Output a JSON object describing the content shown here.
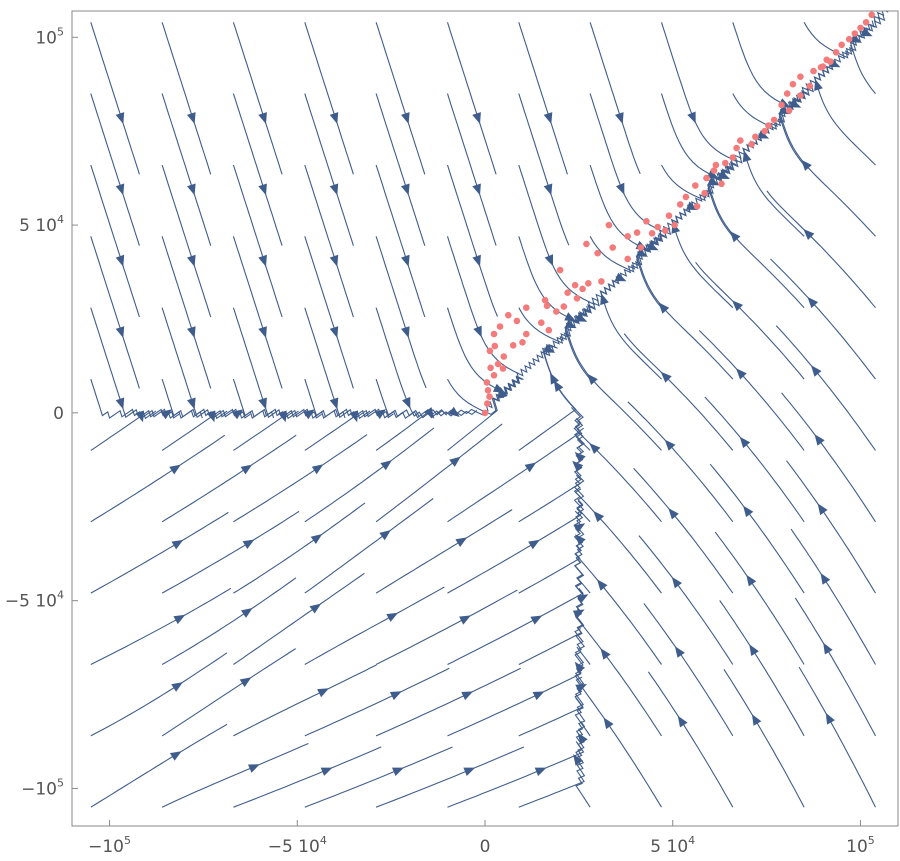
{
  "chart_data": {
    "type": "scatter",
    "subtype": "stream_plot_with_points",
    "title": "",
    "xlabel": "",
    "ylabel": "",
    "xlim": [
      -110000,
      110000
    ],
    "ylim": [
      -110000,
      107000
    ],
    "grid": false,
    "frame": true,
    "colors": {
      "stream": "#3f5d8c",
      "points": "#f47b7b",
      "frame": "#8a8a8a",
      "tick_text": "#555555"
    },
    "x_ticks": [
      {
        "value": -100000,
        "label": "−10",
        "exp": "5"
      },
      {
        "value": -50000,
        "label": "−5 10",
        "exp": "4"
      },
      {
        "value": 0,
        "label": "0",
        "exp": ""
      },
      {
        "value": 50000,
        "label": "5 10",
        "exp": "4"
      },
      {
        "value": 100000,
        "label": "10",
        "exp": "5"
      }
    ],
    "y_ticks": [
      {
        "value": 100000,
        "label": "10",
        "exp": "5"
      },
      {
        "value": 50000,
        "label": "5 10",
        "exp": "4"
      },
      {
        "value": 0,
        "label": "0",
        "exp": ""
      },
      {
        "value": -50000,
        "label": "−5 10",
        "exp": "4"
      },
      {
        "value": -100000,
        "label": "−10",
        "exp": "5"
      }
    ],
    "points": [
      [
        0,
        0
      ],
      [
        600,
        2500
      ],
      [
        1200,
        4300
      ],
      [
        800,
        6000
      ],
      [
        500,
        8100
      ],
      [
        2400,
        10000
      ],
      [
        1500,
        12000
      ],
      [
        4800,
        11800
      ],
      [
        3500,
        13000
      ],
      [
        5000,
        15000
      ],
      [
        1300,
        16500
      ],
      [
        2600,
        17800
      ],
      [
        7500,
        18000
      ],
      [
        10000,
        18800
      ],
      [
        2400,
        21000
      ],
      [
        11000,
        21000
      ],
      [
        17000,
        22000
      ],
      [
        4000,
        23000
      ],
      [
        8500,
        24500
      ],
      [
        15000,
        24000
      ],
      [
        6200,
        26000
      ],
      [
        19000,
        27000
      ],
      [
        11000,
        28000
      ],
      [
        16500,
        28500
      ],
      [
        21000,
        28300
      ],
      [
        16000,
        30000
      ],
      [
        24500,
        30500
      ],
      [
        22000,
        32000
      ],
      [
        26000,
        33000
      ],
      [
        24000,
        34000
      ],
      [
        27500,
        34500
      ],
      [
        31000,
        35000
      ],
      [
        20000,
        38000
      ],
      [
        38000,
        41000
      ],
      [
        30000,
        42500
      ],
      [
        34000,
        44000
      ],
      [
        41500,
        44000
      ],
      [
        27000,
        45000
      ],
      [
        38000,
        47000
      ],
      [
        40500,
        48000
      ],
      [
        44500,
        47800
      ],
      [
        46000,
        49500
      ],
      [
        48000,
        48500
      ],
      [
        50500,
        50000
      ],
      [
        43000,
        51000
      ],
      [
        33000,
        50000
      ],
      [
        49000,
        52500
      ],
      [
        52000,
        55500
      ],
      [
        56500,
        55000
      ],
      [
        53500,
        57500
      ],
      [
        58500,
        58500
      ],
      [
        56000,
        60500
      ],
      [
        63000,
        61000
      ],
      [
        59000,
        62500
      ],
      [
        61000,
        64500
      ],
      [
        64000,
        66500
      ],
      [
        66000,
        68000
      ],
      [
        61500,
        66000
      ],
      [
        67000,
        70500
      ],
      [
        68000,
        72500
      ],
      [
        72000,
        73500
      ],
      [
        71000,
        71500
      ],
      [
        74500,
        75000
      ],
      [
        75500,
        76500
      ],
      [
        77000,
        78000
      ],
      [
        81000,
        80500
      ],
      [
        79000,
        82000
      ],
      [
        84000,
        84500
      ],
      [
        80500,
        85000
      ],
      [
        86500,
        87000
      ],
      [
        82000,
        87500
      ],
      [
        84000,
        89500
      ],
      [
        87500,
        91000
      ],
      [
        89500,
        92000
      ],
      [
        91000,
        94000
      ],
      [
        93500,
        96000
      ],
      [
        95000,
        98000
      ],
      [
        97000,
        99500
      ],
      [
        98500,
        101000
      ],
      [
        100000,
        102500
      ],
      [
        101500,
        104000
      ],
      [
        103000,
        106000
      ],
      [
        92000,
        93500
      ],
      [
        90000,
        92200
      ]
    ]
  }
}
